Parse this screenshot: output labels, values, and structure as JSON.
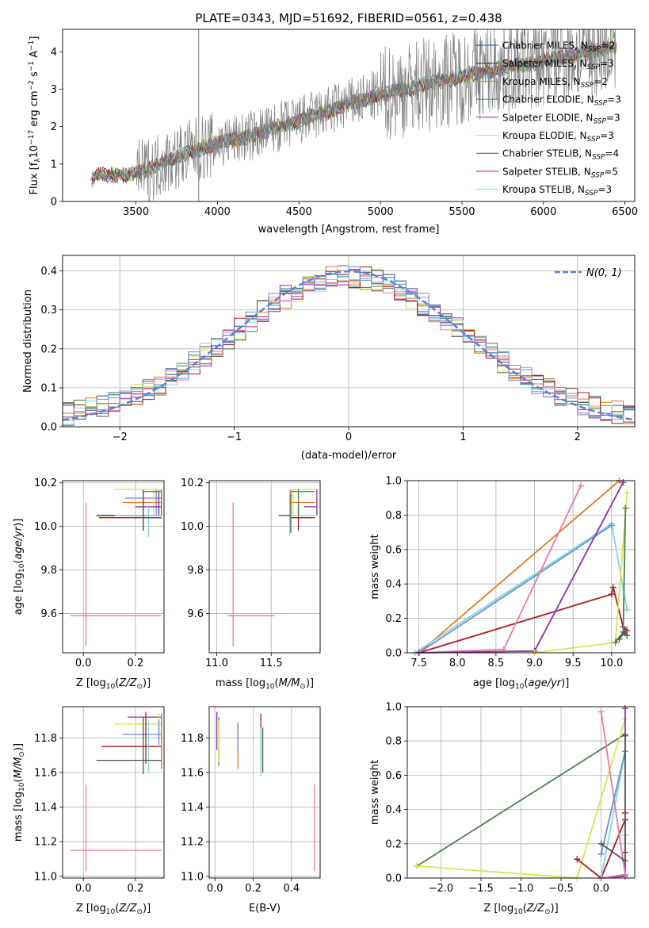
{
  "figure_title": "PLATE=0343, MJD=51692, FIBERID=0561, z=0.438",
  "colors": {
    "chabrier_miles": "#1f4f8f",
    "salpeter_miles": "#2b2b2b",
    "kroupa_miles": "#e07a1f",
    "chabrier_elodie": "#4f7f4f",
    "salpeter_elodie": "#8e2fa8",
    "kroupa_elodie": "#d4e84a",
    "chabrier_stelib": "#555555",
    "salpeter_stelib": "#a81c1c",
    "kroupa_stelib": "#7fd6e0",
    "extra_pink": "#e879b0",
    "extra_blue": "#6a8fd6",
    "normal_curve": "#5b84d6",
    "grid": "#b0b0b0"
  },
  "chart_data": [
    {
      "id": "spectrum",
      "type": "line",
      "title": "PLATE=0343, MJD=51692, FIBERID=0561, z=0.438",
      "xlabel": "wavelength [Angstrom, rest frame]",
      "ylabel": "Flux [f_λ 10^-17 erg cm^-2 s^-1 A^-1]",
      "xlim": [
        3050,
        6560
      ],
      "ylim": [
        0,
        4.6
      ],
      "xticks": [
        3500,
        4000,
        4500,
        5000,
        5500,
        6000,
        6500
      ],
      "yticks": [
        0,
        1,
        2,
        3,
        4
      ],
      "grid": false,
      "legend": "top-right",
      "series": [
        {
          "name": "Chabrier MILES, N_SSP=2",
          "key": "chabrier_miles"
        },
        {
          "name": "Salpeter MILES, N_SSP=3",
          "key": "salpeter_miles"
        },
        {
          "name": "Kroupa MILES, N_SSP=2",
          "key": "kroupa_miles"
        },
        {
          "name": "Chabrier ELODIE, N_SSP=3",
          "key": "chabrier_elodie"
        },
        {
          "name": "Salpeter ELODIE, N_SSP=3",
          "key": "salpeter_elodie"
        },
        {
          "name": "Kroupa ELODIE, N_SSP=3",
          "key": "kroupa_elodie"
        },
        {
          "name": "Chabrier STELIB, N_SSP=4",
          "key": "chabrier_stelib"
        },
        {
          "name": "Salpeter STELIB, N_SSP=5",
          "key": "salpeter_stelib"
        },
        {
          "name": "Kroupa STELIB, N_SSP=3",
          "key": "kroupa_stelib"
        }
      ],
      "continuum": {
        "x": [
          3220,
          3250,
          3350,
          3450,
          3550,
          3700,
          3850,
          4000,
          4200,
          4500,
          4800,
          5000,
          5200,
          5500,
          5800,
          6000,
          6200,
          6450
        ],
        "y": [
          0.55,
          0.7,
          0.7,
          0.72,
          0.8,
          1.1,
          1.35,
          1.55,
          1.75,
          2.15,
          2.6,
          2.85,
          3.05,
          3.35,
          3.6,
          3.75,
          3.95,
          4.15
        ]
      }
    },
    {
      "id": "residuals",
      "type": "histogram",
      "xlabel": "(data-model)/error",
      "ylabel": "Normed distribution",
      "xlim": [
        -2.5,
        2.5
      ],
      "ylim": [
        0,
        0.44
      ],
      "xticks": [
        -2,
        -1,
        0,
        1,
        2
      ],
      "yticks": [
        0.0,
        0.1,
        0.2,
        0.3,
        0.4
      ],
      "grid": true,
      "legend": "top-right",
      "legend_label": "N(0, 1)",
      "bin_width": 0.1
    },
    {
      "id": "age_vs_Z",
      "type": "errorbar",
      "xlabel": "Z [log10(Z/Z_sun)]",
      "ylabel": "age [log10(age/yr)]",
      "xlim": [
        -0.08,
        0.31
      ],
      "ylim": [
        9.42,
        10.21
      ],
      "xticks": [
        0.0,
        0.2
      ],
      "yticks": [
        9.6,
        9.8,
        10.0,
        10.2
      ],
      "grid": true,
      "points": [
        {
          "key": "extra_pink",
          "x": 0.01,
          "y": 9.59,
          "xlo": -0.05,
          "xhi": 0.3,
          "ylo": 9.45,
          "yhi": 10.11
        },
        {
          "key": "salpeter_miles",
          "x": 0.05,
          "y": 10.05,
          "xlo": 0.05,
          "xhi": 0.3,
          "ylo": 10.05,
          "yhi": 10.05
        },
        {
          "key": "salpeter_stelib",
          "x": 0.23,
          "y": 10.04,
          "xlo": 0.06,
          "xhi": 0.3,
          "ylo": 9.98,
          "yhi": 10.17
        },
        {
          "key": "kroupa_miles",
          "x": 0.29,
          "y": 10.11,
          "xlo": 0.15,
          "xhi": 0.3,
          "ylo": 10.06,
          "yhi": 10.17
        },
        {
          "key": "extra_blue",
          "x": 0.28,
          "y": 10.13,
          "xlo": 0.16,
          "xhi": 0.3,
          "ylo": 10.05,
          "yhi": 10.17
        },
        {
          "key": "kroupa_elodie",
          "x": 0.27,
          "y": 10.17,
          "xlo": 0.12,
          "xhi": 0.3,
          "ylo": 10.05,
          "yhi": 10.17
        },
        {
          "key": "salpeter_elodie",
          "x": 0.29,
          "y": 10.09,
          "xlo": 0.2,
          "xhi": 0.3,
          "ylo": 10.05,
          "yhi": 10.16
        },
        {
          "key": "chabrier_elodie",
          "x": 0.3,
          "y": 10.16,
          "xlo": 0.23,
          "xhi": 0.3,
          "ylo": 10.05,
          "yhi": 10.17
        },
        {
          "key": "kroupa_stelib",
          "x": 0.25,
          "y": 10.05,
          "xlo": 0.12,
          "xhi": 0.3,
          "ylo": 9.95,
          "yhi": 10.1
        },
        {
          "key": "chabrier_stelib",
          "x": 0.23,
          "y": 10.04,
          "xlo": 0.23,
          "xhi": 0.3,
          "ylo": 9.98,
          "yhi": 10.15
        }
      ]
    },
    {
      "id": "age_vs_mass",
      "type": "errorbar",
      "xlabel": "mass [log10(M/M_sun)]",
      "ylabel": "",
      "xlim": [
        10.93,
        11.95
      ],
      "ylim": [
        9.42,
        10.21
      ],
      "xticks": [
        11.0,
        11.5
      ],
      "yticks": [
        9.6,
        9.8,
        10.0,
        10.2
      ],
      "grid": true,
      "points": [
        {
          "key": "extra_pink",
          "x": 11.15,
          "y": 9.59,
          "xlo": 11.1,
          "xhi": 11.53,
          "ylo": 9.45,
          "yhi": 10.11
        },
        {
          "key": "salpeter_stelib",
          "x": 11.75,
          "y": 10.04,
          "xlo": 11.68,
          "xhi": 11.9,
          "ylo": 9.98,
          "yhi": 10.1
        },
        {
          "key": "kroupa_stelib",
          "x": 11.67,
          "y": 10.05,
          "xlo": 11.57,
          "xhi": 11.9,
          "ylo": 9.96,
          "yhi": 10.17
        },
        {
          "key": "kroupa_miles",
          "x": 11.68,
          "y": 10.11,
          "xlo": 11.68,
          "xhi": 11.9,
          "ylo": 10.06,
          "yhi": 10.17
        },
        {
          "key": "salpeter_elodie",
          "x": 11.92,
          "y": 10.09,
          "xlo": 11.8,
          "xhi": 11.92,
          "ylo": 10.05,
          "yhi": 10.17
        },
        {
          "key": "kroupa_elodie",
          "x": 11.7,
          "y": 10.17,
          "xlo": 11.68,
          "xhi": 11.9,
          "ylo": 10.05,
          "yhi": 10.17
        },
        {
          "key": "chabrier_elodie",
          "x": 11.75,
          "y": 10.16,
          "xlo": 11.68,
          "xhi": 11.9,
          "ylo": 10.05,
          "yhi": 10.17
        },
        {
          "key": "chabrier_stelib",
          "x": 11.68,
          "y": 10.05,
          "xlo": 11.57,
          "xhi": 11.68,
          "ylo": 9.97,
          "yhi": 10.15
        }
      ]
    },
    {
      "id": "weight_vs_age",
      "type": "line",
      "xlabel": "age [log10(age/yr)]",
      "ylabel": "mass weight",
      "xlim": [
        7.35,
        10.3
      ],
      "ylim": [
        0,
        1.0
      ],
      "xticks": [
        7.5,
        8.0,
        8.5,
        9.0,
        9.5,
        10.0
      ],
      "yticks": [
        0.0,
        0.2,
        0.4,
        0.6,
        0.8,
        1.0
      ],
      "grid": true,
      "series": [
        {
          "key": "kroupa_miles",
          "x": [
            7.5,
            10.1
          ],
          "y": [
            0.0,
            1.0
          ]
        },
        {
          "key": "salpeter_stelib",
          "x": [
            7.5,
            10.0,
            10.02,
            10.15,
            10.2
          ],
          "y": [
            0.0,
            0.34,
            0.38,
            0.15,
            0.13
          ]
        },
        {
          "key": "kroupa_stelib",
          "x": [
            7.45,
            10.0,
            10.2
          ],
          "y": [
            0.0,
            0.75,
            0.25
          ]
        },
        {
          "key": "extra_blue",
          "x": [
            7.5,
            10.0
          ],
          "y": [
            0.0,
            0.74
          ]
        },
        {
          "key": "extra_pink",
          "x": [
            7.5,
            8.6,
            9.6
          ],
          "y": [
            0.0,
            0.02,
            0.97
          ]
        },
        {
          "key": "salpeter_elodie",
          "x": [
            7.5,
            9.0,
            10.15
          ],
          "y": [
            0.0,
            0.01,
            0.99
          ]
        },
        {
          "key": "kroupa_elodie",
          "x": [
            9.0,
            10.05,
            10.2
          ],
          "y": [
            0.0,
            0.06,
            0.93
          ]
        },
        {
          "key": "chabrier_elodie",
          "x": [
            10.05,
            10.15,
            10.18
          ],
          "y": [
            0.06,
            0.12,
            0.84
          ]
        },
        {
          "key": "chabrier_stelib",
          "x": [
            10.1,
            10.17,
            10.2
          ],
          "y": [
            0.08,
            0.12,
            0.1
          ]
        }
      ]
    },
    {
      "id": "mass_vs_Z",
      "type": "errorbar",
      "xlabel": "Z [log10(Z/Z_sun)]",
      "ylabel": "mass [log10(M/M_sun)]",
      "xlim": [
        -0.08,
        0.31
      ],
      "ylim": [
        10.99,
        11.98
      ],
      "xticks": [
        0.0,
        0.2
      ],
      "yticks": [
        11.0,
        11.2,
        11.4,
        11.6,
        11.8
      ],
      "grid": true,
      "points": [
        {
          "key": "extra_pink",
          "x": 0.01,
          "y": 11.15,
          "xlo": -0.05,
          "xhi": 0.3,
          "ylo": 11.03,
          "yhi": 11.53
        },
        {
          "key": "salpeter_elodie",
          "x": 0.29,
          "y": 11.92,
          "xlo": 0.17,
          "xhi": 0.3,
          "ylo": 11.8,
          "yhi": 11.94
        },
        {
          "key": "kroupa_elodie",
          "x": 0.29,
          "y": 11.88,
          "xlo": 0.12,
          "xhi": 0.3,
          "ylo": 11.8,
          "yhi": 11.94
        },
        {
          "key": "extra_blue",
          "x": 0.29,
          "y": 11.82,
          "xlo": 0.15,
          "xhi": 0.3,
          "ylo": 11.76,
          "yhi": 11.9
        },
        {
          "key": "salpeter_stelib",
          "x": 0.24,
          "y": 11.75,
          "xlo": 0.07,
          "xhi": 0.3,
          "ylo": 11.65,
          "yhi": 11.95
        },
        {
          "key": "chabrier_elodie",
          "x": 0.3,
          "y": 11.8,
          "xlo": 0.3,
          "xhi": 0.3,
          "ylo": 11.62,
          "yhi": 11.94
        },
        {
          "key": "kroupa_miles",
          "x": 0.3,
          "y": 11.68,
          "xlo": 0.3,
          "xhi": 0.3,
          "ylo": 11.62,
          "yhi": 11.9
        },
        {
          "key": "kroupa_stelib",
          "x": 0.25,
          "y": 11.67,
          "xlo": 0.05,
          "xhi": 0.3,
          "ylo": 11.6,
          "yhi": 11.9
        },
        {
          "key": "chabrier_stelib",
          "x": 0.23,
          "y": 11.67,
          "xlo": 0.05,
          "xhi": 0.3,
          "ylo": 11.59,
          "yhi": 11.92
        }
      ]
    },
    {
      "id": "mass_vs_ebv",
      "type": "errorbar",
      "xlabel": "E(B-V)",
      "ylabel": "",
      "xlim": [
        -0.03,
        0.55
      ],
      "ylim": [
        10.99,
        11.98
      ],
      "xticks": [
        0.0,
        0.2,
        0.4
      ],
      "yticks": [
        11.0,
        11.2,
        11.4,
        11.6,
        11.8
      ],
      "grid": true,
      "points": [
        {
          "key": "extra_pink",
          "x": 0.52,
          "y": 11.15,
          "ylo": 11.03,
          "yhi": 11.53
        },
        {
          "key": "salpeter_elodie",
          "x": 0.01,
          "y": 11.82,
          "ylo": 11.73,
          "yhi": 11.95
        },
        {
          "key": "chabrier_elodie",
          "x": 0.02,
          "y": 11.78,
          "ylo": 11.64,
          "yhi": 11.92
        },
        {
          "key": "kroupa_elodie",
          "x": 0.02,
          "y": 11.78,
          "ylo": 11.66,
          "yhi": 11.9
        },
        {
          "key": "kroupa_miles",
          "x": 0.12,
          "y": 11.75,
          "ylo": 11.62,
          "yhi": 11.89
        },
        {
          "key": "extra_blue",
          "x": 0.12,
          "y": 11.8,
          "ylo": 11.72,
          "yhi": 11.88
        },
        {
          "key": "salpeter_stelib",
          "x": 0.24,
          "y": 11.78,
          "ylo": 11.66,
          "yhi": 11.94
        },
        {
          "key": "kroupa_stelib",
          "x": 0.24,
          "y": 11.7,
          "ylo": 11.58,
          "yhi": 11.86
        },
        {
          "key": "chabrier_stelib",
          "x": 0.25,
          "y": 11.7,
          "ylo": 11.6,
          "yhi": 11.86
        }
      ]
    },
    {
      "id": "weight_vs_Z",
      "type": "line",
      "xlabel": "Z [log10(Z/Z_sun)]",
      "ylabel": "mass weight",
      "xlim": [
        -2.42,
        0.42
      ],
      "ylim": [
        0,
        1.0
      ],
      "xticks": [
        -2.0,
        -1.5,
        -1.0,
        -0.5,
        0.0
      ],
      "yticks": [
        0.0,
        0.2,
        0.4,
        0.6,
        0.8,
        1.0
      ],
      "grid": true,
      "series": [
        {
          "key": "chabrier_elodie",
          "x": [
            -2.3,
            0.3
          ],
          "y": [
            0.07,
            0.84
          ]
        },
        {
          "key": "kroupa_elodie",
          "x": [
            -2.3,
            -0.3,
            0.3
          ],
          "y": [
            0.07,
            0.0,
            0.93
          ]
        },
        {
          "key": "salpeter_elodie",
          "x": [
            0.0,
            0.3,
            0.3
          ],
          "y": [
            0.0,
            0.01,
            0.99
          ]
        },
        {
          "key": "salpeter_stelib",
          "x": [
            -0.3,
            0.0,
            0.3,
            0.3,
            0.3
          ],
          "y": [
            0.11,
            0.0,
            0.34,
            0.38,
            0.15
          ]
        },
        {
          "key": "kroupa_stelib",
          "x": [
            0.0,
            0.3,
            0.3
          ],
          "y": [
            0.0,
            0.74,
            0.25
          ]
        },
        {
          "key": "extra_pink",
          "x": [
            0.0,
            0.3,
            0.0
          ],
          "y": [
            0.0,
            0.02,
            0.97
          ]
        },
        {
          "key": "extra_blue",
          "x": [
            0.0,
            0.3
          ],
          "y": [
            0.14,
            0.74
          ]
        },
        {
          "key": "chabrier_stelib",
          "x": [
            0.0,
            0.3,
            0.3
          ],
          "y": [
            0.2,
            0.1,
            0.83
          ]
        }
      ]
    }
  ]
}
